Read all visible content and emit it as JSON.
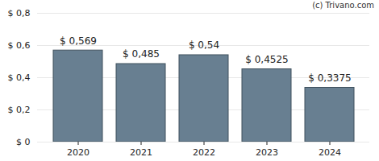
{
  "chart_data": {
    "type": "bar",
    "annotations": [
      "(c) Trivano.com"
    ],
    "categories": [
      "2020",
      "2021",
      "2022",
      "2023",
      "2024"
    ],
    "values": [
      0.569,
      0.485,
      0.54,
      0.4525,
      0.3375
    ],
    "value_labels": [
      "$ 0,569",
      "$ 0,485",
      "$ 0,54",
      "$ 0,4525",
      "$ 0,3375"
    ],
    "data_labels": true,
    "color": "#687f91",
    "ylim": [
      0,
      0.8
    ],
    "yticks": [
      {
        "value": 0,
        "label": "$ 0"
      },
      {
        "value": 0.2,
        "label": "$ 0,2"
      },
      {
        "value": 0.4,
        "label": "$ 0,4"
      },
      {
        "value": 0.6,
        "label": "$ 0,6"
      },
      {
        "value": 0.8,
        "label": "$ 0,8"
      }
    ],
    "grid": true
  }
}
